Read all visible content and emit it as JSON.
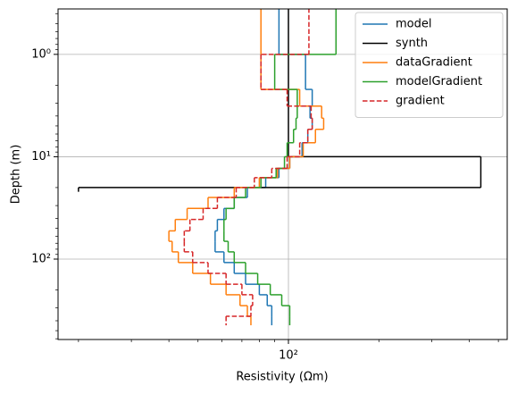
{
  "chart_data": {
    "type": "step",
    "xlabel": "Resistivity (Ωm)",
    "ylabel": "Depth (m)",
    "xscale": "log",
    "yscale": "log",
    "grid": true,
    "legend": "upper right",
    "xlim": [
      17.1,
      535
    ],
    "ylim": [
      610,
      0.36
    ],
    "xticks": [
      {
        "value": 100,
        "label": "10²"
      }
    ],
    "yticks": [
      {
        "value": 1,
        "label": "10⁰"
      },
      {
        "value": 10,
        "label": "10¹"
      },
      {
        "value": 100,
        "label": "10²"
      }
    ],
    "xminorticks": [
      20,
      30,
      40,
      50,
      60,
      70,
      80,
      90,
      200,
      300,
      400,
      500
    ],
    "yminorticks": [
      0.4,
      0.5,
      0.6,
      0.7,
      0.8,
      0.9,
      2,
      3,
      4,
      5,
      6,
      7,
      8,
      9,
      20,
      30,
      40,
      50,
      60,
      70,
      80,
      90,
      200,
      300,
      400,
      500,
      600
    ],
    "series": [
      {
        "name": "model",
        "color": "#1f77b4",
        "dashed": false,
        "depths": [
          0.3,
          1,
          2.2,
          3.2,
          4.2,
          5.4,
          7.3,
          10,
          13,
          16,
          20,
          25,
          32,
          41,
          53,
          67,
          85,
          108,
          138,
          176,
          223,
          285,
          362,
          443
        ],
        "values": [
          93,
          114,
          120,
          118,
          120,
          116,
          111,
          101,
          93,
          84,
          73,
          66,
          61,
          58,
          57,
          57,
          61,
          66,
          72,
          80,
          85,
          88,
          88
        ]
      },
      {
        "name": "synth",
        "color": "#000000",
        "dashed": false,
        "depths": [
          0.3,
          10,
          20,
          22
        ],
        "values": [
          100,
          437,
          20
        ]
      },
      {
        "name": "dataGradient",
        "color": "#ff7f0e",
        "dashed": false,
        "depths": [
          0.3,
          1,
          2.2,
          3.2,
          4.2,
          5.4,
          7.3,
          10,
          13,
          16,
          20,
          25,
          32,
          41,
          53,
          67,
          85,
          108,
          138,
          176,
          223,
          285,
          362,
          443
        ],
        "values": [
          81,
          81,
          109,
          129,
          131,
          123,
          112,
          101,
          92,
          80,
          66,
          54,
          46,
          42,
          40,
          41,
          43,
          48,
          55,
          62,
          69,
          73,
          75
        ]
      },
      {
        "name": "modelGradient",
        "color": "#2ca02c",
        "dashed": false,
        "depths": [
          0.3,
          1,
          2.2,
          3.2,
          4.2,
          5.4,
          7.3,
          10,
          13,
          16,
          20,
          25,
          32,
          41,
          53,
          67,
          85,
          108,
          138,
          176,
          223,
          285,
          362,
          443
        ],
        "values": [
          144,
          90,
          107,
          107,
          106,
          104,
          99,
          97,
          91,
          81,
          72,
          66,
          62,
          61,
          61,
          63,
          66,
          72,
          79,
          87,
          95,
          101,
          101
        ]
      },
      {
        "name": "gradient",
        "color": "#d62728",
        "dashed": true,
        "depths": [
          0.3,
          1,
          2.2,
          3.2,
          4.2,
          5.4,
          7.3,
          10,
          13,
          16,
          20,
          25,
          32,
          41,
          53,
          67,
          85,
          108,
          138,
          176,
          223,
          285,
          362,
          443
        ],
        "values": [
          117,
          81,
          99,
          119,
          120,
          116,
          109,
          99,
          88,
          77,
          67,
          58,
          52,
          47,
          45,
          45,
          48,
          54,
          62,
          70,
          76,
          75,
          62
        ]
      }
    ]
  }
}
